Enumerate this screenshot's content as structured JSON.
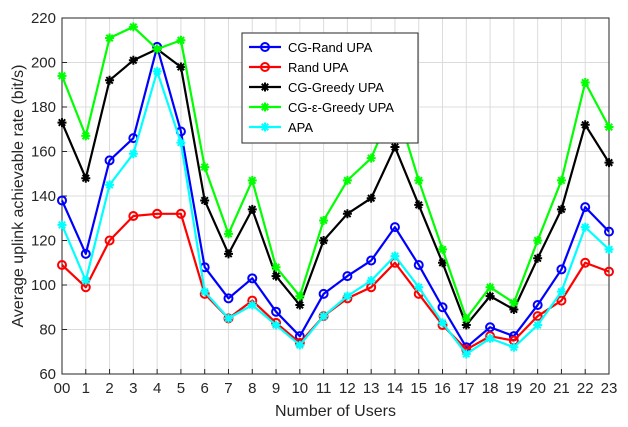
{
  "chart_data": {
    "type": "line",
    "xlabel": "Number of Users",
    "ylabel": "Average uplink achievable  rate (bit/s)",
    "categories": [
      "00",
      "1",
      "2",
      "3",
      "4",
      "5",
      "6",
      "7",
      "8",
      "9",
      "10",
      "11",
      "12",
      "13",
      "14",
      "15",
      "16",
      "17",
      "18",
      "19",
      "20",
      "21",
      "22",
      "23"
    ],
    "ylim": [
      60,
      220
    ],
    "yticks": [
      60,
      80,
      100,
      120,
      140,
      160,
      180,
      200,
      220
    ],
    "grid": true,
    "legend_position": "top-center",
    "series": [
      {
        "name": "CG-Rand UPA",
        "color": "#0000ff",
        "marker": "circle",
        "values": [
          138,
          114,
          156,
          166,
          207,
          169,
          108,
          94,
          103,
          88,
          77,
          96,
          104,
          111,
          126,
          109,
          90,
          72,
          81,
          77,
          91,
          107,
          135,
          124
        ]
      },
      {
        "name": "Rand UPA",
        "color": "#ff0000",
        "marker": "circle",
        "values": [
          109,
          99,
          120,
          131,
          132,
          132,
          96,
          85,
          93,
          83,
          74,
          86,
          94,
          99,
          110,
          96,
          82,
          71,
          77,
          75,
          86,
          93,
          110,
          106
        ]
      },
      {
        "name": "CG-Greedy UPA",
        "color": "#000000",
        "marker": "asterisk",
        "values": [
          173,
          148,
          192,
          201,
          206,
          198,
          138,
          114,
          134,
          104,
          91,
          120,
          132,
          139,
          162,
          136,
          110,
          82,
          95,
          89,
          112,
          134,
          172,
          155
        ]
      },
      {
        "name": "CG-ε-Greedy UPA",
        "color": "#00ff00",
        "marker": "asterisk",
        "values": [
          194,
          167,
          211,
          216,
          206,
          210,
          153,
          123,
          147,
          108,
          95,
          129,
          147,
          157,
          182,
          147,
          116,
          85,
          99,
          92,
          120,
          147,
          191,
          171
        ]
      },
      {
        "name": "APA",
        "color": "#00ffff",
        "marker": "asterisk",
        "values": [
          127,
          102,
          145,
          159,
          196,
          164,
          97,
          85,
          91,
          82,
          73,
          86,
          95,
          102,
          113,
          99,
          83,
          69,
          76,
          72,
          82,
          97,
          126,
          116
        ]
      }
    ]
  }
}
